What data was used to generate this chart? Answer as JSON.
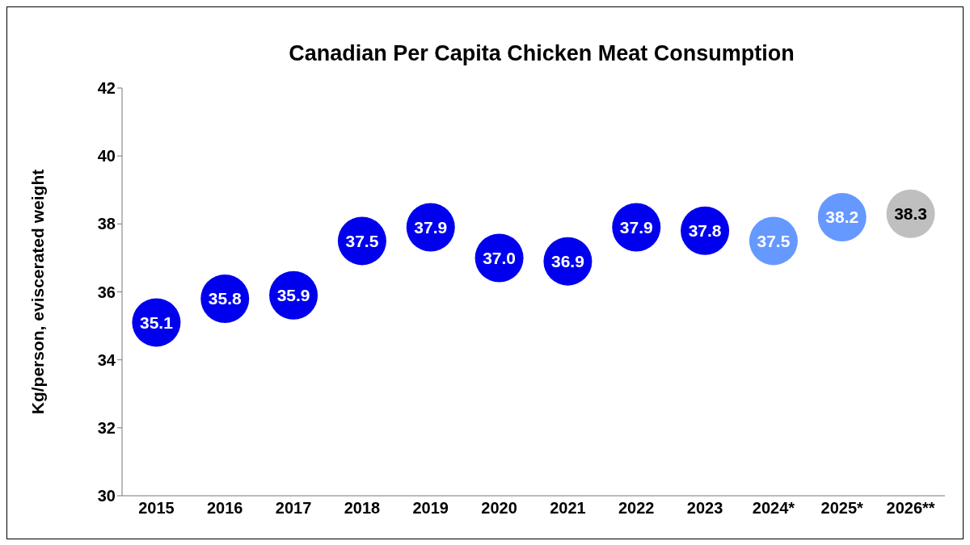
{
  "chart_data": {
    "type": "scatter",
    "title": "Canadian Per Capita Chicken Meat Consumption",
    "ylabel": "Kg/person, eviscerated weight",
    "categories": [
      "2015",
      "2016",
      "2017",
      "2018",
      "2019",
      "2020",
      "2021",
      "2022",
      "2023",
      "2024*",
      "2025*",
      "2026**"
    ],
    "values": [
      35.1,
      35.8,
      35.9,
      37.5,
      37.9,
      37.0,
      36.9,
      37.9,
      37.8,
      37.5,
      38.2,
      38.3
    ],
    "value_labels": [
      "35.1",
      "35.8",
      "35.9",
      "37.5",
      "37.9",
      "37.0",
      "36.9",
      "37.9",
      "37.8",
      "37.5",
      "38.2",
      "38.3"
    ],
    "colors": [
      "#0000ee",
      "#0000ee",
      "#0000ee",
      "#0000ee",
      "#0000ee",
      "#0000ee",
      "#0000ee",
      "#0000ee",
      "#0000ee",
      "#6699ff",
      "#6699ff",
      "#bfbfbf"
    ],
    "marker": "circle",
    "ylim": [
      30,
      42
    ],
    "yticks": [
      30,
      32,
      34,
      36,
      38,
      40,
      42
    ]
  }
}
